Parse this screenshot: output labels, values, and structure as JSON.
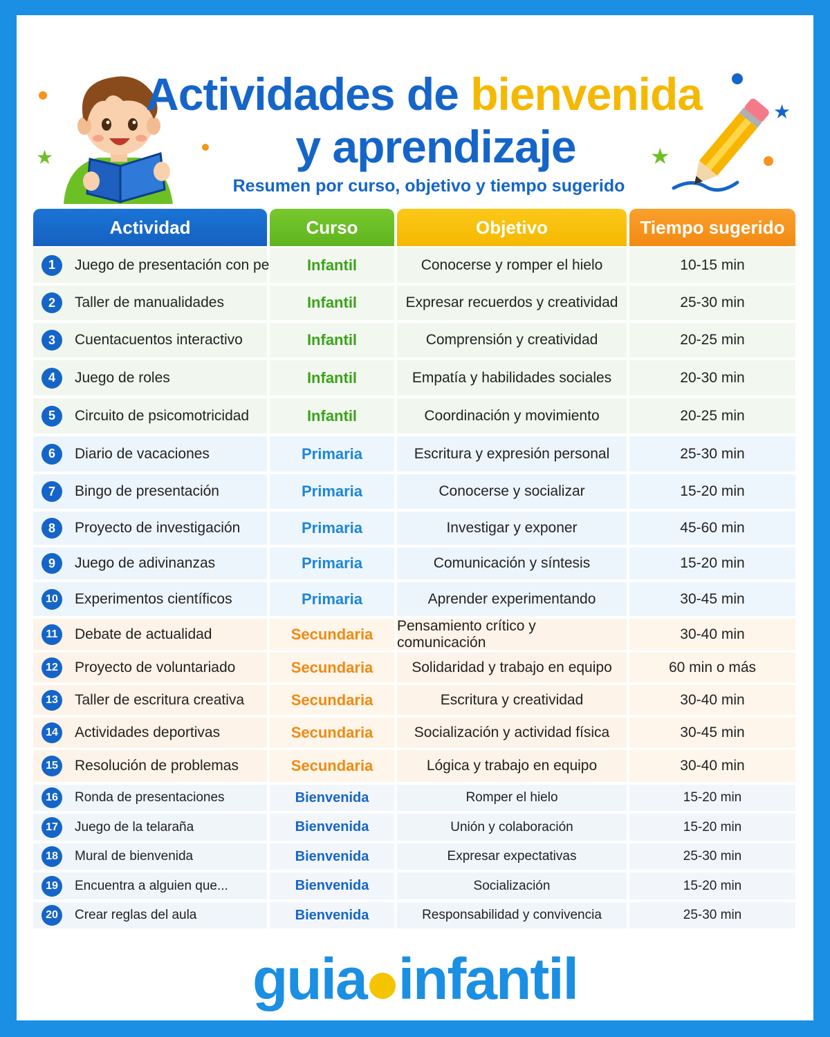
{
  "title": {
    "part1": "Actividades de ",
    "part_accent": "bienvenida",
    "line2": "y aprendizaje",
    "subtitle": "Resumen por curso, objetivo y tiempo sugerido"
  },
  "colors": {
    "blue": "#1565c9",
    "green": "#6cc024",
    "yellow": "#f5b800",
    "orange": "#f7941d",
    "infantil_text": "#3aa31a",
    "primaria_text": "#1c86d8",
    "secundaria_text": "#f08a10",
    "bienvenida_text": "#1565c9"
  },
  "headers": [
    "Actividad",
    "Curso",
    "Objetivo",
    "Tiempo sugerido"
  ],
  "rows": [
    {
      "num": "1",
      "actividad": "Juego de presentación con pelota",
      "curso": "Infantil",
      "objetivo": "Conocerse y romper el hielo",
      "tiempo": "10-15 min"
    },
    {
      "num": "2",
      "actividad": "Taller de manualidades",
      "curso": "Infantil",
      "objetivo": "Expresar recuerdos y creatividad",
      "tiempo": "25-30 min"
    },
    {
      "num": "3",
      "actividad": "Cuentacuentos interactivo",
      "curso": "Infantil",
      "objetivo": "Comprensión y creatividad",
      "tiempo": "20-25 min"
    },
    {
      "num": "4",
      "actividad": "Juego de roles",
      "curso": "Infantil",
      "objetivo": "Empatía y habilidades sociales",
      "tiempo": "20-30 min"
    },
    {
      "num": "5",
      "actividad": "Circuito de psicomotricidad",
      "curso": "Infantil",
      "objetivo": "Coordinación y movimiento",
      "tiempo": "20-25 min"
    },
    {
      "num": "6",
      "actividad": "Diario de vacaciones",
      "curso": "Primaria",
      "objetivo": "Escritura y expresión personal",
      "tiempo": "25-30 min"
    },
    {
      "num": "7",
      "actividad": "Bingo de presentación",
      "curso": "Primaria",
      "objetivo": "Conocerse y socializar",
      "tiempo": "15-20 min"
    },
    {
      "num": "8",
      "actividad": "Proyecto de investigación",
      "curso": "Primaria",
      "objetivo": "Investigar y exponer",
      "tiempo": "45-60 min"
    },
    {
      "num": "9",
      "actividad": "Juego de adivinanzas",
      "curso": "Primaria",
      "objetivo": "Comunicación y síntesis",
      "tiempo": "15-20 min"
    },
    {
      "num": "10",
      "actividad": "Experimentos científicos",
      "curso": "Primaria",
      "objetivo": "Aprender experimentando",
      "tiempo": "30-45 min"
    },
    {
      "num": "11",
      "actividad": "Debate de actualidad",
      "curso": "Secundaria",
      "objetivo": "Pensamiento crítico y comunicación",
      "tiempo": "30-40 min"
    },
    {
      "num": "12",
      "actividad": "Proyecto de voluntariado",
      "curso": "Secundaria",
      "objetivo": "Solidaridad y trabajo en equipo",
      "tiempo": "60 min o más"
    },
    {
      "num": "13",
      "actividad": "Taller de escritura creativa",
      "curso": "Secundaria",
      "objetivo": "Escritura y creatividad",
      "tiempo": "30-40 min"
    },
    {
      "num": "14",
      "actividad": "Actividades deportivas",
      "curso": "Secundaria",
      "objetivo": "Socialización y actividad física",
      "tiempo": "30-45 min"
    },
    {
      "num": "15",
      "actividad": "Resolución de problemas",
      "curso": "Secundaria",
      "objetivo": "Lógica y trabajo en equipo",
      "tiempo": "30-40 min"
    },
    {
      "num": "16",
      "actividad": "Ronda de presentaciones",
      "curso": "Bienvenida",
      "objetivo": "Romper el hielo",
      "tiempo": "15-20 min"
    },
    {
      "num": "17",
      "actividad": "Juego de la telaraña",
      "curso": "Bienvenida",
      "objetivo": "Unión y colaboración",
      "tiempo": "15-20 min"
    },
    {
      "num": "18",
      "actividad": "Mural de bienvenida",
      "curso": "Bienvenida",
      "objetivo": "Expresar expectativas",
      "tiempo": "25-30 min"
    },
    {
      "num": "19",
      "actividad": "Encuentra a alguien que...",
      "curso": "Bienvenida",
      "objetivo": "Socialización",
      "tiempo": "15-20 min"
    },
    {
      "num": "20",
      "actividad": "Crear reglas del aula",
      "curso": "Bienvenida",
      "objetivo": "Responsabilidad y convivencia",
      "tiempo": "25-30 min"
    }
  ],
  "logo": {
    "left": "guia",
    "right": "infantil"
  }
}
